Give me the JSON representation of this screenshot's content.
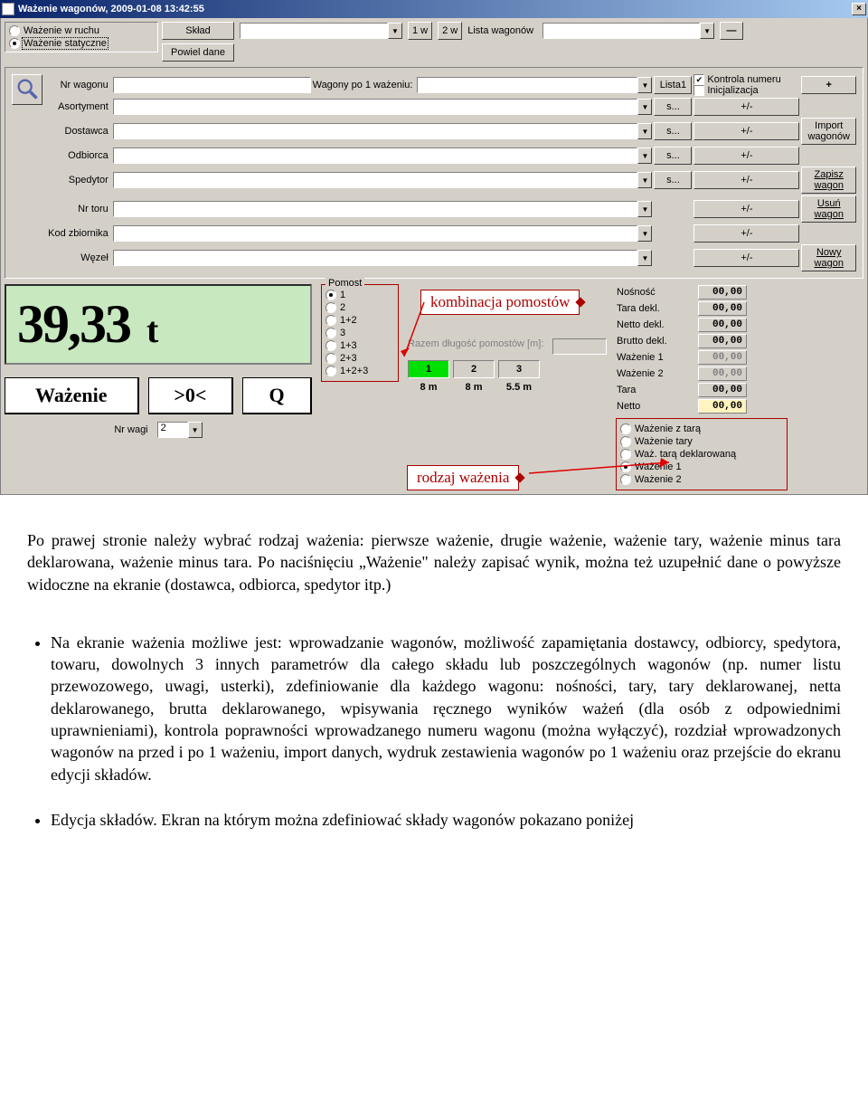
{
  "window": {
    "title": "Ważenie wagonów, 2009-01-08 13:42:55"
  },
  "mode": {
    "opt1": "Ważenie w ruchu",
    "opt2": "Ważenie statyczne"
  },
  "topbar": {
    "sklad_label": "Skład",
    "powiel_label": "Powiel dane",
    "w1": "1 w",
    "w2": "2 w",
    "lista_label": "Lista wagonów",
    "minus": "—"
  },
  "checks": {
    "kontrola": "Kontrola numeru",
    "inicjal": "Inicjalizacja"
  },
  "fields": {
    "nr_wagonu": "Nr wagonu",
    "wagony_po": "Wagony po 1 ważeniu:",
    "lista1": "Lista1",
    "asortyment": "Asortyment",
    "dostawca": "Dostawca",
    "odbiorca": "Odbiorca",
    "spedytor": "Spedytor",
    "nr_toru": "Nr toru",
    "kod_zbiornika": "Kod zbiornika",
    "wezel": "Węzeł",
    "s_btn": "s...",
    "pm_btn": "+/-",
    "plus_btn": "+"
  },
  "side_buttons": {
    "import": "Import wagonów",
    "zapisz": "Zapisz wagon",
    "usun": "Usuń wagon",
    "nowy": "Nowy wagon"
  },
  "weight": {
    "value": "39,33",
    "unit": "t"
  },
  "buttons": {
    "wazenie": "Ważenie",
    "zero": ">0<",
    "q": "Q"
  },
  "nr_wagi": {
    "label": "Nr wagi",
    "value": "2"
  },
  "pomost": {
    "title": "Pomost",
    "opts": [
      "1",
      "2",
      "1+2",
      "3",
      "1+3",
      "2+3",
      "1+2+3"
    ]
  },
  "platforms": {
    "razem_label": "Razem długość pomostów [m]:",
    "cells": [
      "1",
      "2",
      "3"
    ],
    "lengths": [
      "8 m",
      "8 m",
      "5.5 m"
    ]
  },
  "params": {
    "nosnosc_l": "Nośność",
    "nosnosc_v": "00,00",
    "taradekl_l": "Tara dekl.",
    "taradekl_v": "00,00",
    "nettodekl_l": "Netto dekl.",
    "nettodekl_v": "00,00",
    "bruttodekl_l": "Brutto dekl.",
    "bruttodekl_v": "00,00",
    "waz1_l": "Ważenie 1",
    "waz1_v": "00,00",
    "waz2_l": "Ważenie 2",
    "waz2_v": "00,00",
    "tara_l": "Tara",
    "tara_v": "00,00",
    "netto_l": "Netto",
    "netto_v": "00,00"
  },
  "rodzaj": {
    "opts": [
      "Ważenie z tarą",
      "Ważenie tary",
      "Waż. tarą deklarowaną",
      "Ważenie 1",
      "Ważenie 2"
    ]
  },
  "callouts": {
    "kombinacja": "kombinacja pomostów",
    "rodzaj": "rodzaj ważenia"
  },
  "doc": {
    "p1": "Po prawej stronie należy wybrać rodzaj ważenia: pierwsze ważenie, drugie ważenie, ważenie tary, ważenie minus tara deklarowana, ważenie minus tara. Po naciśnięciu „Ważenie\" należy zapisać wynik, można też uzupełnić dane o powyższe widoczne na ekranie (dostawca, odbiorca, spedytor itp.)",
    "b1": "Na ekranie ważenia możliwe jest: wprowadzanie wagonów, możliwość zapamiętania dostawcy, odbiorcy, spedytora, towaru, dowolnych 3 innych parametrów dla całego składu lub poszczególnych wagonów (np. numer listu przewozowego, uwagi, usterki), zdefiniowanie dla każdego wagonu: nośności, tary, tary deklarowanej, netta deklarowanego, brutta deklarowanego, wpisywania ręcznego wyników ważeń (dla osób z odpowiednimi uprawnieniami), kontrola poprawności wprowadzanego numeru wagonu (można wyłączyć), rozdział wprowadzonych wagonów na przed i po 1 ważeniu, import danych, wydruk zestawienia wagonów po 1 ważeniu oraz przejście do ekranu edycji składów.",
    "b2": "Edycja składów. Ekran na którym można zdefiniować składy wagonów pokazano poniżej"
  }
}
